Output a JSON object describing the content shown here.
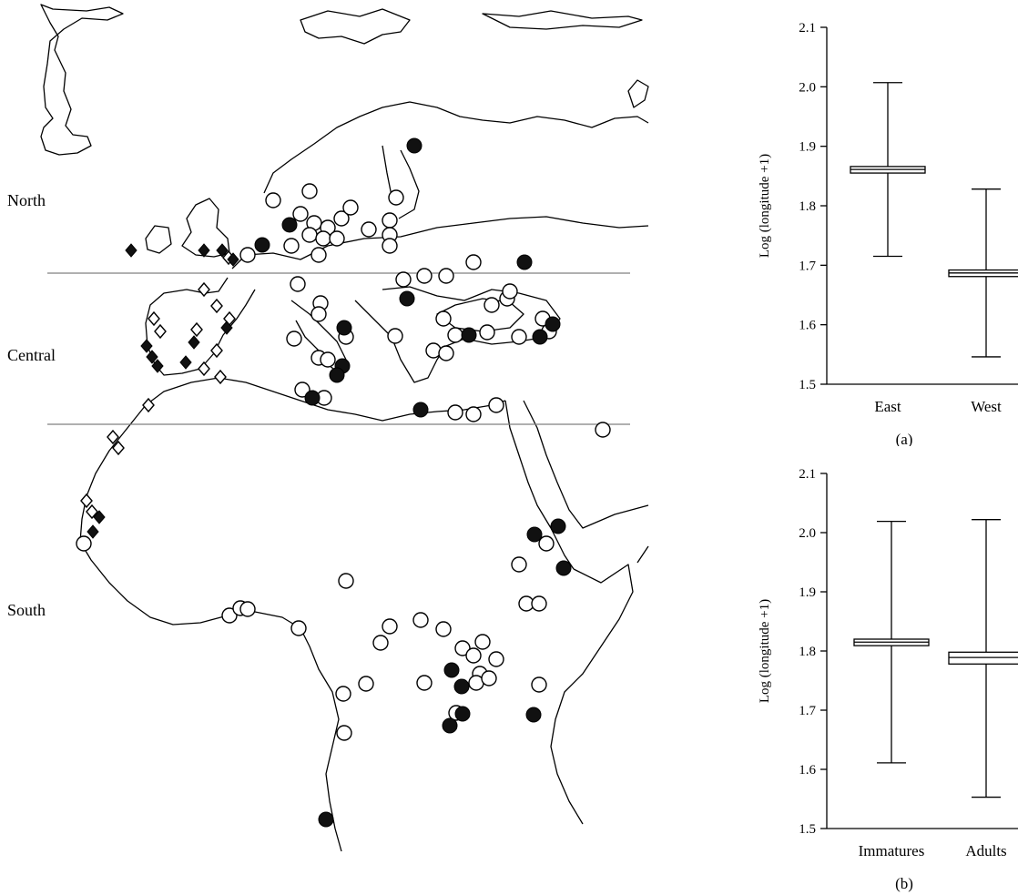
{
  "map": {
    "regions": [
      "North",
      "Central",
      "South"
    ]
  },
  "chart_data": [
    {
      "type": "box",
      "panel": "(a)",
      "ylabel": "Log (longitude +1)",
      "ylim": [
        1.5,
        2.1
      ],
      "yticks": [
        1.5,
        1.6,
        1.7,
        1.8,
        1.9,
        2.0,
        2.1
      ],
      "ytick_labels": [
        "1.5",
        "1.6",
        "1.7",
        "1.8",
        "1.9",
        "2.0",
        "2.1"
      ],
      "categories": [
        "East",
        "West"
      ],
      "boxes": [
        {
          "category": "East",
          "min": 1.715,
          "q1": 1.855,
          "median": 1.861,
          "q3": 1.866,
          "max": 2.007
        },
        {
          "category": "West",
          "min": 1.546,
          "q1": 1.681,
          "median": 1.687,
          "q3": 1.692,
          "max": 1.828
        }
      ]
    },
    {
      "type": "box",
      "panel": "(b)",
      "ylabel": "Log (longitude +1)",
      "ylim": [
        1.5,
        2.1
      ],
      "yticks": [
        1.5,
        1.6,
        1.7,
        1.8,
        1.9,
        2.0,
        2.1
      ],
      "ytick_labels": [
        "1.5",
        "1.6",
        "1.7",
        "1.8",
        "1.9",
        "2.0",
        "2.1"
      ],
      "categories": [
        "Immatures",
        "Adults"
      ],
      "boxes": [
        {
          "category": "Immatures",
          "min": 1.611,
          "q1": 1.809,
          "median": 1.815,
          "q3": 1.82,
          "max": 2.019
        },
        {
          "category": "Adults",
          "min": 1.553,
          "q1": 1.778,
          "median": 1.789,
          "q3": 1.798,
          "max": 2.022
        }
      ]
    }
  ]
}
